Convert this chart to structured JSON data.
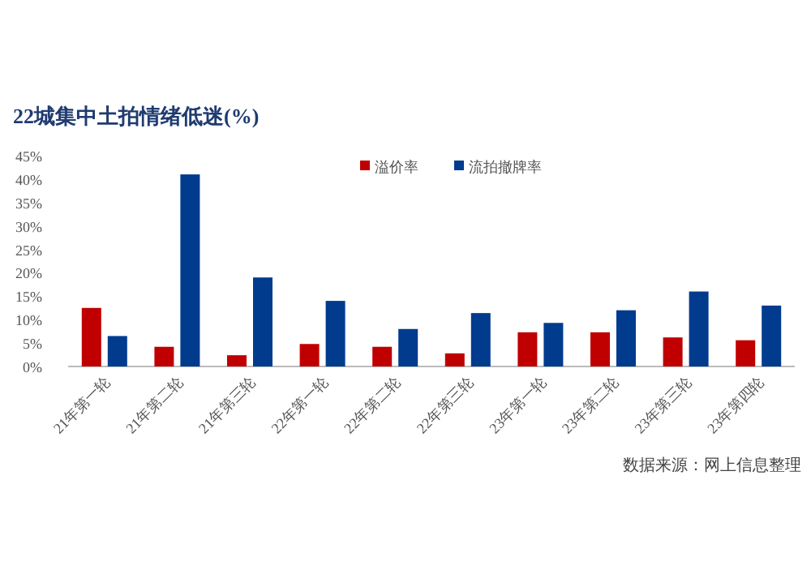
{
  "chart_data": {
    "type": "bar",
    "title": "22城集中土拍情绪低迷(%)",
    "categories": [
      "21年第一轮",
      "21年第二轮",
      "21年第三轮",
      "22年第一轮",
      "22年第二轮",
      "22年第三轮",
      "23年第一轮",
      "23年第二轮",
      "23年第三轮",
      "23年第四轮"
    ],
    "series": [
      {
        "name": "溢价率",
        "color": "#c00000",
        "values": [
          12.5,
          4.2,
          2.4,
          4.8,
          4.2,
          2.8,
          7.3,
          7.3,
          6.2,
          5.6
        ]
      },
      {
        "name": "流拍撤牌率",
        "color": "#003b8e",
        "values": [
          6.5,
          41,
          19,
          14,
          8,
          11.4,
          9.3,
          12,
          16,
          13
        ]
      }
    ],
    "ylim": [
      0,
      45
    ],
    "yticks": [
      {
        "value": 0,
        "label": "0%"
      },
      {
        "value": 5,
        "label": "5%"
      },
      {
        "value": 10,
        "label": "10%"
      },
      {
        "value": 15,
        "label": "15%"
      },
      {
        "value": 20,
        "label": "20%"
      },
      {
        "value": 25,
        "label": "25%"
      },
      {
        "value": 30,
        "label": "30%"
      },
      {
        "value": 35,
        "label": "35%"
      },
      {
        "value": 40,
        "label": "40%"
      },
      {
        "value": 45,
        "label": "45%"
      }
    ],
    "grid": false,
    "legend": "top right",
    "annotations": [
      "数据来源：网上信息整理"
    ]
  }
}
